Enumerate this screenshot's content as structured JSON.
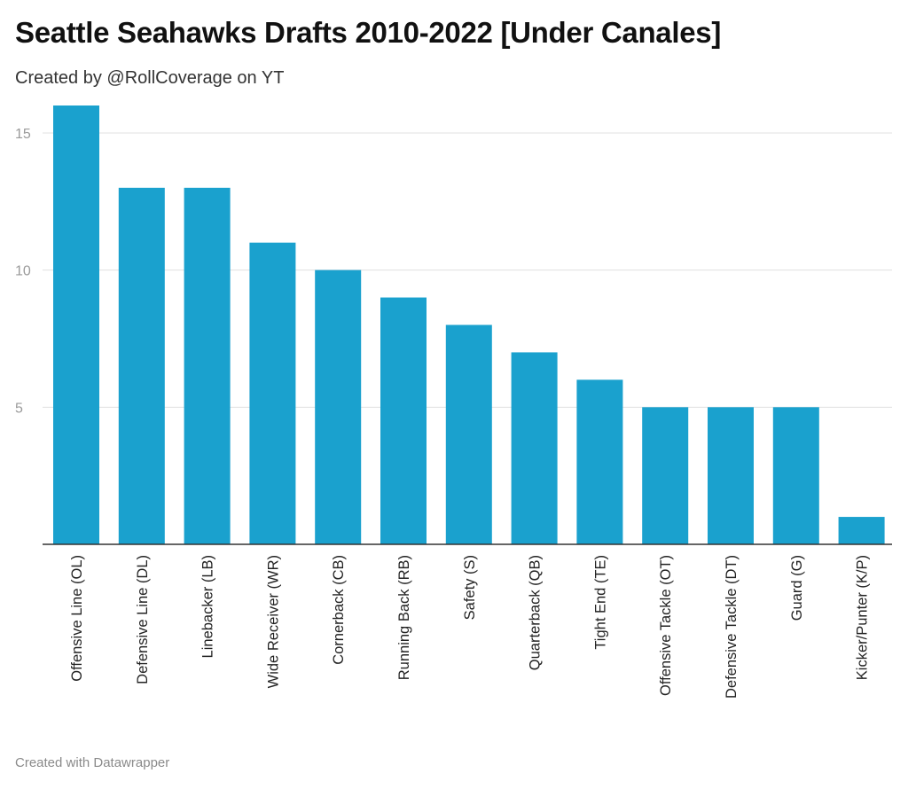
{
  "header": {
    "title": "Seattle Seahawks Drafts 2010-2022 [Under Canales]",
    "subtitle": "Created by @RollCoverage on YT"
  },
  "footer": {
    "credit": "Created with Datawrapper"
  },
  "colors": {
    "bar": "#1aa1ce"
  },
  "chart_data": {
    "type": "bar",
    "title": "Seattle Seahawks Drafts 2010-2022 [Under Canales]",
    "subtitle": "Created by @RollCoverage on YT",
    "xlabel": "",
    "ylabel": "",
    "ylim": [
      0,
      16
    ],
    "yticks": [
      5,
      10,
      15
    ],
    "grid": true,
    "categories": [
      "Offensive Line (OL)",
      "Defensive Line (DL)",
      "Linebacker (LB)",
      "Wide Receiver (WR)",
      "Cornerback (CB)",
      "Running Back (RB)",
      "Safety (S)",
      "Quarterback (QB)",
      "Tight End (TE)",
      "Offensive Tackle (OT)",
      "Defensive Tackle (DT)",
      "Guard (G)",
      "Kicker/Punter (K/P)"
    ],
    "values": [
      16,
      13,
      13,
      11,
      10,
      9,
      8,
      7,
      6,
      5,
      5,
      5,
      1
    ]
  }
}
